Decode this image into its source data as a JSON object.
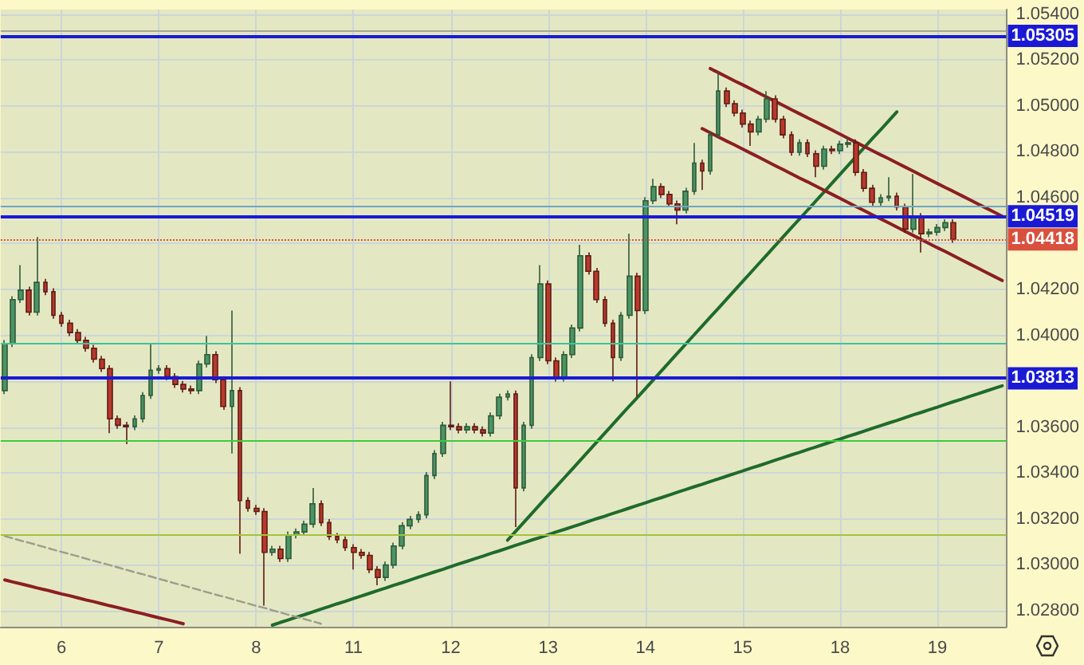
{
  "chart_data": {
    "type": "candlestick",
    "categories": [
      null,
      null,
      null,
      null,
      null,
      null,
      null,
      "6",
      null,
      null,
      null,
      null,
      null,
      null,
      null,
      null,
      null,
      null,
      null,
      "7",
      null,
      null,
      null,
      null,
      null,
      null,
      null,
      null,
      null,
      null,
      null,
      "8",
      null,
      null,
      null,
      null,
      null,
      null,
      null,
      null,
      null,
      null,
      null,
      "11",
      null,
      null,
      null,
      null,
      null,
      null,
      null,
      null,
      null,
      null,
      null,
      "12",
      null,
      null,
      null,
      null,
      null,
      null,
      null,
      null,
      null,
      null,
      null,
      "13",
      null,
      null,
      null,
      null,
      null,
      null,
      null,
      null,
      null,
      null,
      null,
      "14",
      null,
      null,
      null,
      null,
      null,
      null,
      null,
      null,
      null,
      null,
      null,
      "15",
      null,
      null,
      null,
      null,
      null,
      null,
      null,
      null,
      null,
      null,
      null,
      "18",
      null,
      null,
      null,
      null,
      null,
      null,
      null,
      null,
      null,
      null,
      null,
      "19",
      null,
      null,
      null,
      null,
      null,
      null,
      null,
      null
    ],
    "ohlc": [
      [
        1.03759,
        1.03979,
        1.03744,
        1.03964
      ],
      [
        1.03964,
        1.04171,
        1.03949,
        1.04156
      ],
      [
        1.04156,
        1.04306,
        1.04141,
        1.04197
      ],
      [
        1.04197,
        1.04212,
        1.04086,
        1.04101
      ],
      [
        1.04101,
        1.04429,
        1.04086,
        1.04231
      ],
      [
        1.04231,
        1.04246,
        1.04175,
        1.0419
      ],
      [
        1.0419,
        1.04205,
        1.04072,
        1.04087
      ],
      [
        1.04087,
        1.04102,
        1.04038,
        1.04053
      ],
      [
        1.04053,
        1.04068,
        1.03997,
        1.04012
      ],
      [
        1.04012,
        1.04027,
        1.03963,
        1.03978
      ],
      [
        1.03978,
        1.03993,
        1.03929,
        1.03944
      ],
      [
        1.03944,
        1.03959,
        1.03881,
        1.03896
      ],
      [
        1.03896,
        1.03911,
        1.0384,
        1.03855
      ],
      [
        1.03855,
        1.0387,
        1.03574,
        1.03636
      ],
      [
        1.03636,
        1.03651,
        1.03593,
        1.03608
      ],
      [
        1.03608,
        1.03623,
        1.03526,
        1.03602
      ],
      [
        1.03602,
        1.03651,
        1.03587,
        1.03636
      ],
      [
        1.03636,
        1.03753,
        1.03621,
        1.03738
      ],
      [
        1.03738,
        1.03964,
        1.03723,
        1.03848
      ],
      [
        1.03848,
        1.0387,
        1.03833,
        1.03855
      ],
      [
        1.03855,
        1.0387,
        1.03805,
        1.0382
      ],
      [
        1.0382,
        1.03835,
        1.03771,
        1.03786
      ],
      [
        1.03786,
        1.03801,
        1.03751,
        1.03766
      ],
      [
        1.03766,
        1.03781,
        1.03744,
        1.03759
      ],
      [
        1.03759,
        1.0389,
        1.03744,
        1.03875
      ],
      [
        1.03875,
        1.03998,
        1.0386,
        1.03916
      ],
      [
        1.03916,
        1.03931,
        1.03792,
        1.03807
      ],
      [
        1.03807,
        1.03822,
        1.03675,
        1.0369
      ],
      [
        1.0369,
        1.04108,
        1.03485,
        1.03759
      ],
      [
        1.03759,
        1.03774,
        1.03048,
        1.0328
      ],
      [
        1.0328,
        1.03295,
        1.03231,
        1.03246
      ],
      [
        1.03246,
        1.03261,
        1.03217,
        1.03232
      ],
      [
        1.03232,
        1.03247,
        1.02822,
        1.03054
      ],
      [
        1.03054,
        1.03083,
        1.03039,
        1.03068
      ],
      [
        1.03068,
        1.03083,
        1.03012,
        1.03027
      ],
      [
        1.03027,
        1.03145,
        1.03012,
        1.0313
      ],
      [
        1.0313,
        1.03158,
        1.03115,
        1.03143
      ],
      [
        1.03143,
        1.03192,
        1.03128,
        1.03177
      ],
      [
        1.03177,
        1.03335,
        1.03162,
        1.03266
      ],
      [
        1.03266,
        1.03281,
        1.03169,
        1.03184
      ],
      [
        1.03184,
        1.03199,
        1.03108,
        1.03123
      ],
      [
        1.03123,
        1.03138,
        1.03094,
        1.03109
      ],
      [
        1.03109,
        1.03124,
        1.0306,
        1.03075
      ],
      [
        1.03075,
        1.0309,
        1.02979,
        1.03054
      ],
      [
        1.03054,
        1.03069,
        1.03026,
        1.03041
      ],
      [
        1.03041,
        1.03056,
        1.02964,
        1.02979
      ],
      [
        1.02979,
        1.02994,
        1.02911,
        1.02945
      ],
      [
        1.02945,
        1.03014,
        1.0293,
        1.02999
      ],
      [
        1.02999,
        1.03097,
        1.02984,
        1.03082
      ],
      [
        1.03082,
        1.03185,
        1.03067,
        1.0317
      ],
      [
        1.0317,
        1.03213,
        1.03155,
        1.03198
      ],
      [
        1.03198,
        1.03233,
        1.03183,
        1.03218
      ],
      [
        1.03218,
        1.03404,
        1.03203,
        1.03389
      ],
      [
        1.03389,
        1.035,
        1.03374,
        1.03485
      ],
      [
        1.03485,
        1.03623,
        1.0347,
        1.03608
      ],
      [
        1.03608,
        1.038,
        1.03587,
        1.03602
      ],
      [
        1.03602,
        1.03617,
        1.03573,
        1.03588
      ],
      [
        1.03588,
        1.03617,
        1.03573,
        1.03602
      ],
      [
        1.03602,
        1.03617,
        1.03573,
        1.03588
      ],
      [
        1.03588,
        1.03603,
        1.03559,
        1.03574
      ],
      [
        1.03574,
        1.03664,
        1.03559,
        1.03649
      ],
      [
        1.03649,
        1.03746,
        1.03634,
        1.03731
      ],
      [
        1.03731,
        1.0376,
        1.03716,
        1.03745
      ],
      [
        1.03745,
        1.0376,
        1.03164,
        1.03335
      ],
      [
        1.03335,
        1.03623,
        1.0332,
        1.03608
      ],
      [
        1.03608,
        1.03918,
        1.03593,
        1.03903
      ],
      [
        1.03903,
        1.04306,
        1.03888,
        1.04224
      ],
      [
        1.04224,
        1.04239,
        1.03874,
        1.03889
      ],
      [
        1.03889,
        1.03904,
        1.03799,
        1.03814
      ],
      [
        1.03814,
        1.03931,
        1.03799,
        1.03916
      ],
      [
        1.03916,
        1.04047,
        1.03901,
        1.04032
      ],
      [
        1.04032,
        1.04395,
        1.04017,
        1.04347
      ],
      [
        1.04347,
        1.04362,
        1.04264,
        1.04279
      ],
      [
        1.04279,
        1.04294,
        1.04141,
        1.04156
      ],
      [
        1.04156,
        1.04171,
        1.04038,
        1.04053
      ],
      [
        1.04053,
        1.04068,
        1.038,
        1.03903
      ],
      [
        1.03903,
        1.04102,
        1.03888,
        1.04087
      ],
      [
        1.04087,
        1.04443,
        1.04072,
        1.04258
      ],
      [
        1.04258,
        1.04273,
        1.03731,
        1.04108
      ],
      [
        1.04108,
        1.04602,
        1.04093,
        1.04587
      ],
      [
        1.04587,
        1.04682,
        1.04572,
        1.04648
      ],
      [
        1.04648,
        1.04663,
        1.04599,
        1.04614
      ],
      [
        1.04614,
        1.04629,
        1.04558,
        1.04573
      ],
      [
        1.04573,
        1.04588,
        1.04484,
        1.04546
      ],
      [
        1.04546,
        1.04643,
        1.04531,
        1.04628
      ],
      [
        1.04628,
        1.04839,
        1.04613,
        1.04751
      ],
      [
        1.04751,
        1.04766,
        1.04634,
        1.04716
      ],
      [
        1.04716,
        1.04889,
        1.04701,
        1.04874
      ],
      [
        1.04874,
        1.05147,
        1.04859,
        1.05065
      ],
      [
        1.05065,
        1.0508,
        1.04995,
        1.0501
      ],
      [
        1.0501,
        1.05025,
        1.04954,
        1.04969
      ],
      [
        1.04969,
        1.04984,
        1.04906,
        1.04921
      ],
      [
        1.04921,
        1.04936,
        1.04826,
        1.04887
      ],
      [
        1.04887,
        1.04957,
        1.04872,
        1.04942
      ],
      [
        1.04942,
        1.05065,
        1.04927,
        1.05031
      ],
      [
        1.05031,
        1.05046,
        1.04927,
        1.04942
      ],
      [
        1.04942,
        1.04957,
        1.04859,
        1.04874
      ],
      [
        1.04874,
        1.04889,
        1.04783,
        1.04798
      ],
      [
        1.04798,
        1.04854,
        1.04783,
        1.04839
      ],
      [
        1.04839,
        1.04854,
        1.04777,
        1.04792
      ],
      [
        1.04792,
        1.04807,
        1.04689,
        1.04737
      ],
      [
        1.04737,
        1.04827,
        1.04722,
        1.04812
      ],
      [
        1.04812,
        1.04827,
        1.0479,
        1.04805
      ],
      [
        1.04805,
        1.04848,
        1.0479,
        1.04833
      ],
      [
        1.04833,
        1.0486,
        1.04818,
        1.04839
      ],
      [
        1.04839,
        1.04854,
        1.04695,
        1.0471
      ],
      [
        1.0471,
        1.04725,
        1.04626,
        1.04641
      ],
      [
        1.04641,
        1.04656,
        1.04565,
        1.0458
      ],
      [
        1.0458,
        1.04615,
        1.04565,
        1.046
      ],
      [
        1.046,
        1.04689,
        1.04585,
        1.04607
      ],
      [
        1.04607,
        1.04622,
        1.04544,
        1.04559
      ],
      [
        1.04559,
        1.04574,
        1.04448,
        1.04463
      ],
      [
        1.04463,
        1.04703,
        1.04448,
        1.04518
      ],
      [
        1.04518,
        1.04533,
        1.04361,
        1.04443
      ],
      [
        1.04443,
        1.04465,
        1.04428,
        1.0445
      ],
      [
        1.0445,
        1.04485,
        1.04435,
        1.0447
      ],
      [
        1.0447,
        1.04506,
        1.04455,
        1.04491
      ],
      [
        1.04491,
        1.04506,
        1.04403,
        1.04418
      ],
      null,
      null,
      null,
      null,
      null,
      null
    ],
    "series": [
      {
        "type": "line",
        "color": "#1f6b2b",
        "values": [
          null,
          null,
          null,
          null,
          null,
          null,
          null,
          null,
          null,
          null,
          null,
          null,
          null,
          null,
          null,
          null,
          null,
          null,
          null,
          null,
          null,
          null,
          null,
          null,
          null,
          null,
          null,
          null,
          null,
          null,
          null,
          null,
          null,
          null,
          null,
          null,
          null,
          null,
          null,
          null,
          null,
          null,
          null,
          null,
          null,
          null,
          null,
          null,
          null,
          null,
          null,
          null,
          null,
          null,
          null,
          null,
          null,
          null,
          null,
          null,
          null,
          null,
          1.03107,
          1.03146,
          1.03185,
          1.03224,
          1.03263,
          1.03302,
          1.0334,
          1.03379,
          1.03418,
          1.03457,
          1.03496,
          1.03535,
          1.03574,
          1.03613,
          1.03652,
          1.03691,
          1.03729,
          1.03768,
          1.03807,
          1.03846,
          1.03885,
          1.03924,
          1.03963,
          1.04002,
          1.04041,
          1.0408,
          1.04118,
          1.04157,
          1.04196,
          1.04235,
          1.04274,
          1.04313,
          1.04352,
          1.04391,
          1.0443,
          1.04469,
          1.04507,
          1.04546,
          1.04585,
          1.04624,
          1.04663,
          1.04702,
          1.04741,
          1.0478,
          1.04819,
          1.04858,
          1.04896,
          1.04935,
          1.04974,
          null,
          null,
          null,
          null,
          null,
          null,
          null,
          null,
          null,
          null,
          null,
          null,
          null
        ]
      },
      {
        "type": "line",
        "color": "#1f6b2b",
        "values": [
          null,
          null,
          null,
          null,
          null,
          null,
          null,
          null,
          null,
          null,
          null,
          null,
          null,
          null,
          null,
          null,
          null,
          null,
          null,
          null,
          null,
          null,
          null,
          null,
          null,
          null,
          null,
          null,
          null,
          null,
          null,
          null,
          null,
          1.02737,
          1.02749,
          1.0276,
          1.02772,
          1.02783,
          1.02795,
          1.02807,
          1.02818,
          1.0283,
          1.02841,
          1.02853,
          1.02864,
          1.02876,
          1.02888,
          1.02899,
          1.02911,
          1.02922,
          1.02934,
          1.02946,
          1.02957,
          1.02969,
          1.0298,
          1.02992,
          1.03004,
          1.03015,
          1.03027,
          1.03038,
          1.0305,
          1.03061,
          1.03073,
          1.03085,
          1.03096,
          1.03108,
          1.03119,
          1.03131,
          1.03143,
          1.03154,
          1.03166,
          1.03177,
          1.03189,
          1.03201,
          1.03212,
          1.03224,
          1.03235,
          1.03247,
          1.03259,
          1.0327,
          1.03282,
          1.03293,
          1.03305,
          1.03317,
          1.03328,
          1.0334,
          1.03351,
          1.03363,
          1.03374,
          1.03386,
          1.03398,
          1.03409,
          1.03421,
          1.03432,
          1.03444,
          1.03456,
          1.03467,
          1.03479,
          1.0349,
          1.03502,
          1.03513,
          1.03525,
          1.03537,
          1.03548,
          1.0356,
          1.03571,
          1.03583,
          1.03595,
          1.03606,
          1.03618,
          1.03629,
          1.03641,
          1.03653,
          1.03664,
          1.03676,
          1.03687,
          1.03699,
          1.03711,
          1.03722,
          1.03734,
          1.03745,
          1.03757,
          1.03769,
          1.0378
        ]
      },
      {
        "type": "line",
        "color": "#8b1e22",
        "values": [
          null,
          null,
          null,
          null,
          null,
          null,
          null,
          null,
          null,
          null,
          null,
          null,
          null,
          null,
          null,
          null,
          null,
          null,
          null,
          null,
          null,
          null,
          null,
          null,
          null,
          null,
          null,
          null,
          null,
          null,
          null,
          null,
          null,
          null,
          null,
          null,
          null,
          null,
          null,
          null,
          null,
          null,
          null,
          null,
          null,
          null,
          null,
          null,
          null,
          null,
          null,
          null,
          null,
          null,
          null,
          null,
          null,
          null,
          null,
          null,
          null,
          null,
          null,
          null,
          null,
          null,
          null,
          null,
          null,
          null,
          null,
          null,
          null,
          null,
          null,
          null,
          null,
          null,
          null,
          null,
          null,
          null,
          null,
          null,
          null,
          null,
          null,
          1.05163,
          1.05145,
          1.05127,
          1.05109,
          1.05092,
          1.05074,
          1.05056,
          1.05038,
          1.0502,
          1.05002,
          1.04984,
          1.04966,
          1.04948,
          1.04931,
          1.04913,
          1.04895,
          1.04877,
          1.04859,
          1.04841,
          1.04823,
          1.04805,
          1.04787,
          1.0477,
          1.04752,
          1.04734,
          1.04716,
          1.04698,
          1.0468,
          1.04662,
          1.04644,
          1.04627,
          1.04609,
          1.04591,
          1.04573,
          1.04555,
          1.04537,
          1.04519
        ]
      },
      {
        "type": "line",
        "color": "#8b1e22",
        "values": [
          null,
          null,
          null,
          null,
          null,
          null,
          null,
          null,
          null,
          null,
          null,
          null,
          null,
          null,
          null,
          null,
          null,
          null,
          null,
          null,
          null,
          null,
          null,
          null,
          null,
          null,
          null,
          null,
          null,
          null,
          null,
          null,
          null,
          null,
          null,
          null,
          null,
          null,
          null,
          null,
          null,
          null,
          null,
          null,
          null,
          null,
          null,
          null,
          null,
          null,
          null,
          null,
          null,
          null,
          null,
          null,
          null,
          null,
          null,
          null,
          null,
          null,
          null,
          null,
          null,
          null,
          null,
          null,
          null,
          null,
          null,
          null,
          null,
          null,
          null,
          null,
          null,
          null,
          null,
          null,
          null,
          null,
          null,
          null,
          null,
          null,
          1.04901,
          1.04883,
          1.04865,
          1.04847,
          1.0483,
          1.04812,
          1.04794,
          1.04776,
          1.04758,
          1.0474,
          1.04722,
          1.04704,
          1.04686,
          1.04669,
          1.04651,
          1.04633,
          1.04615,
          1.04597,
          1.04579,
          1.04561,
          1.04543,
          1.04525,
          1.04508,
          1.0449,
          1.04472,
          1.04454,
          1.04436,
          1.04418,
          1.044,
          1.04382,
          1.04365,
          1.04347,
          1.04329,
          1.04311,
          1.04293,
          1.04275,
          1.04257,
          1.04239
        ]
      },
      {
        "type": "line",
        "color": "#8b1e22",
        "values": [
          1.02934,
          1.02925,
          1.02917,
          1.02908,
          1.02899,
          1.02891,
          1.02882,
          1.02873,
          1.02865,
          1.02856,
          1.02847,
          1.02839,
          1.0283,
          1.02821,
          1.02813,
          1.02804,
          1.02795,
          1.02787,
          1.02778,
          1.02769,
          1.02761,
          1.02752,
          1.02743,
          null,
          null,
          null,
          null,
          null,
          null,
          null,
          null,
          null,
          null,
          null,
          null,
          null,
          null,
          null,
          null,
          null,
          null,
          null,
          null,
          null,
          null,
          null,
          null,
          null,
          null,
          null,
          null,
          null,
          null,
          null,
          null,
          null,
          null,
          null,
          null,
          null,
          null,
          null,
          null,
          null,
          null,
          null,
          null,
          null,
          null,
          null,
          null,
          null,
          null,
          null,
          null,
          null,
          null,
          null,
          null,
          null,
          null,
          null,
          null,
          null,
          null,
          null,
          null,
          null,
          null,
          null,
          null,
          null,
          null,
          null,
          null,
          null,
          null,
          null,
          null,
          null,
          null,
          null,
          null,
          null,
          null,
          null,
          null,
          null,
          null,
          null,
          null,
          null,
          null,
          null,
          null,
          null,
          null,
          null,
          null,
          null,
          null,
          null,
          null,
          null
        ]
      },
      {
        "type": "line",
        "color": "#9c9c8e",
        "line_style": "dashed",
        "values": [
          1.03125,
          1.03115,
          1.03105,
          1.03096,
          1.03086,
          1.03076,
          1.03066,
          1.03056,
          1.03047,
          1.03037,
          1.03027,
          1.03017,
          1.03008,
          1.02998,
          1.02988,
          1.02978,
          1.02968,
          1.02959,
          1.02949,
          1.02939,
          1.02929,
          1.02919,
          1.0291,
          1.029,
          1.0289,
          1.0288,
          1.0287,
          1.02861,
          1.02851,
          1.02841,
          1.02831,
          1.02821,
          1.02812,
          1.02802,
          1.02792,
          1.02782,
          1.02773,
          1.02763,
          1.02753,
          1.02743,
          null,
          null,
          null,
          null,
          null,
          null,
          null,
          null,
          null,
          null,
          null,
          null,
          null,
          null,
          null,
          null,
          null,
          null,
          null,
          null,
          null,
          null,
          null,
          null,
          null,
          null,
          null,
          null,
          null,
          null,
          null,
          null,
          null,
          null,
          null,
          null,
          null,
          null,
          null,
          null,
          null,
          null,
          null,
          null,
          null,
          null,
          null,
          null,
          null,
          null,
          null,
          null,
          null,
          null,
          null,
          null,
          null,
          null,
          null,
          null,
          null,
          null,
          null,
          null,
          null,
          null,
          null,
          null,
          null,
          null,
          null,
          null,
          null,
          null,
          null,
          null,
          null,
          null,
          null,
          null,
          null,
          null,
          null,
          null
        ]
      }
    ],
    "ylim": [
      1.0273,
      1.0542
    ],
    "yticks": [
      {
        "value": 1.028,
        "label": "1.02800"
      },
      {
        "value": 1.03,
        "label": "1.03000"
      },
      {
        "value": 1.032,
        "label": "1.03200"
      },
      {
        "value": 1.034,
        "label": "1.03400"
      },
      {
        "value": 1.036,
        "label": "1.03600"
      },
      {
        "value": 1.038,
        "label": null
      },
      {
        "value": 1.04,
        "label": "1.04000"
      },
      {
        "value": 1.042,
        "label": "1.04200"
      },
      {
        "value": 1.044,
        "label": null
      },
      {
        "value": 1.046,
        "label": "1.04600"
      },
      {
        "value": 1.048,
        "label": "1.04800"
      },
      {
        "value": 1.05,
        "label": "1.05000"
      },
      {
        "value": 1.052,
        "label": "1.05200"
      },
      {
        "value": 1.054,
        "label": "1.05400"
      }
    ],
    "grid": true,
    "ref_lines": [
      {
        "axis": "y",
        "value": 1.0533,
        "color": "#a6a696"
      },
      {
        "axis": "y",
        "value": 1.05305,
        "label": "1.05305",
        "color": "#1a1ad4"
      },
      {
        "axis": "y",
        "value": 1.04566,
        "color": "#6fa6c4"
      },
      {
        "axis": "y",
        "value": 1.04519,
        "label": "1.04519",
        "color": "#1a1ad4"
      },
      {
        "axis": "y",
        "value": 1.04418,
        "label": "1.04418",
        "color": "#d9503e",
        "line_style": "dotted"
      },
      {
        "axis": "y",
        "value": 1.03968,
        "color": "#3cc49c"
      },
      {
        "axis": "y",
        "value": 1.03813,
        "label": "1.03813",
        "color": "#1a1ad4"
      },
      {
        "axis": "y",
        "value": 1.03544,
        "color": "#3ccc3c"
      },
      {
        "axis": "y",
        "value": 1.0313,
        "color": "#a4c23e"
      }
    ]
  }
}
